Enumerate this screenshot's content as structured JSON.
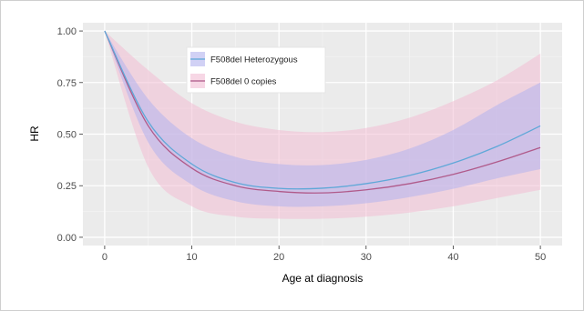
{
  "chart_data": {
    "type": "line",
    "title": "",
    "xlabel": "Age at diagnosis",
    "ylabel": "HR",
    "xlim": [
      -2.5,
      52.5
    ],
    "ylim": [
      -0.04,
      1.04
    ],
    "x_ticks": [
      0,
      10,
      20,
      30,
      40,
      50
    ],
    "y_ticks": [
      0.0,
      0.25,
      0.5,
      0.75,
      1.0
    ],
    "x_tick_labels": [
      "0",
      "10",
      "20",
      "30",
      "40",
      "50"
    ],
    "y_tick_labels": [
      "0.00",
      "0.25",
      "0.50",
      "0.75",
      "1.00"
    ],
    "grid": true,
    "legend_position": "top-left",
    "x": [
      0,
      5,
      10,
      15,
      20,
      25,
      30,
      35,
      40,
      45,
      50
    ],
    "series": [
      {
        "name": "F508del Heterozygous",
        "color": "#5fa8d8",
        "band_color": "#b3b3ee",
        "values": [
          1.0,
          0.56,
          0.355,
          0.265,
          0.237,
          0.238,
          0.26,
          0.3,
          0.36,
          0.44,
          0.54
        ],
        "lower": [
          1.0,
          0.46,
          0.255,
          0.175,
          0.15,
          0.15,
          0.165,
          0.195,
          0.235,
          0.285,
          0.33
        ],
        "upper": [
          1.0,
          0.67,
          0.48,
          0.39,
          0.355,
          0.35,
          0.375,
          0.43,
          0.52,
          0.64,
          0.75
        ]
      },
      {
        "name": "F508del 0 copies",
        "color": "#b05a8a",
        "band_color": "#f2bdd4",
        "values": [
          1.0,
          0.54,
          0.335,
          0.25,
          0.222,
          0.215,
          0.23,
          0.26,
          0.305,
          0.365,
          0.435
        ],
        "lower": [
          1.0,
          0.34,
          0.15,
          0.1,
          0.09,
          0.09,
          0.1,
          0.12,
          0.15,
          0.19,
          0.23
        ],
        "upper": [
          1.0,
          0.81,
          0.65,
          0.56,
          0.52,
          0.51,
          0.53,
          0.58,
          0.66,
          0.76,
          0.89
        ]
      }
    ]
  }
}
